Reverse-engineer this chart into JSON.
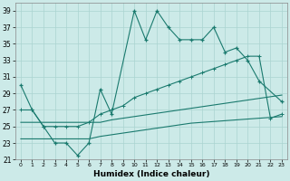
{
  "xlabel": "Humidex (Indice chaleur)",
  "background_color": "#cceae8",
  "grid_color": "#aad4d0",
  "line_color": "#1a7a6e",
  "xmin": -0.5,
  "xmax": 23.5,
  "ymin": 21,
  "ymax": 40,
  "yticks": [
    21,
    23,
    25,
    27,
    29,
    31,
    33,
    35,
    37,
    39
  ],
  "xticks": [
    0,
    1,
    2,
    3,
    4,
    5,
    6,
    7,
    8,
    9,
    10,
    11,
    12,
    13,
    14,
    15,
    16,
    17,
    18,
    19,
    20,
    21,
    22,
    23
  ],
  "series1_x": [
    0,
    1,
    2,
    3,
    4,
    5,
    6,
    7,
    8,
    10,
    11,
    12,
    13,
    14,
    15,
    16,
    17,
    18,
    19,
    20,
    21,
    23
  ],
  "series1_y": [
    30.0,
    27.0,
    25.0,
    23.0,
    23.0,
    21.5,
    23.0,
    29.5,
    26.5,
    39.0,
    35.5,
    39.0,
    37.0,
    35.5,
    35.5,
    35.5,
    37.0,
    34.0,
    34.5,
    33.0,
    30.5,
    28.0
  ],
  "series2_x": [
    0,
    1,
    2,
    3,
    4,
    5,
    6,
    7,
    8,
    9,
    10,
    11,
    12,
    13,
    14,
    15,
    16,
    17,
    18,
    19,
    20,
    21,
    22,
    23
  ],
  "series2_y": [
    27.0,
    27.0,
    25.0,
    25.0,
    25.0,
    25.0,
    25.5,
    26.5,
    27.0,
    27.5,
    28.5,
    29.0,
    29.5,
    30.0,
    30.5,
    31.0,
    31.5,
    32.0,
    32.5,
    33.0,
    33.5,
    33.5,
    26.0,
    26.5
  ],
  "series3_x": [
    0,
    1,
    2,
    3,
    4,
    5,
    6,
    7,
    8,
    9,
    10,
    11,
    12,
    13,
    14,
    15,
    16,
    17,
    18,
    19,
    20,
    21,
    22,
    23
  ],
  "series3_y": [
    25.5,
    25.5,
    25.5,
    25.5,
    25.5,
    25.5,
    25.5,
    25.5,
    25.8,
    26.0,
    26.2,
    26.4,
    26.6,
    26.8,
    27.0,
    27.2,
    27.4,
    27.6,
    27.8,
    28.0,
    28.2,
    28.4,
    28.6,
    28.8
  ],
  "series4_x": [
    0,
    1,
    2,
    3,
    4,
    5,
    6,
    7,
    8,
    9,
    10,
    11,
    12,
    13,
    14,
    15,
    16,
    17,
    18,
    19,
    20,
    21,
    22,
    23
  ],
  "series4_y": [
    23.5,
    23.5,
    23.5,
    23.5,
    23.5,
    23.5,
    23.5,
    23.8,
    24.0,
    24.2,
    24.4,
    24.6,
    24.8,
    25.0,
    25.2,
    25.4,
    25.5,
    25.6,
    25.7,
    25.8,
    25.9,
    26.0,
    26.1,
    26.2
  ]
}
